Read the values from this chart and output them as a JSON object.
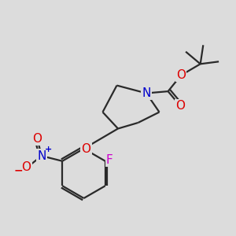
{
  "bg_color": "#dcdcdc",
  "bond_color": "#2a2a2a",
  "bond_width": 1.6,
  "atom_colors": {
    "N": "#0000cc",
    "O": "#dd0000",
    "F": "#cc00cc",
    "NO2_N": "#0000cc",
    "NO2_O": "#dd0000"
  },
  "font_size": 10.5
}
